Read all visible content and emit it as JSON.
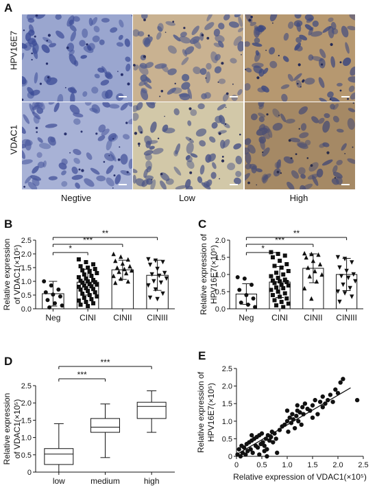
{
  "panel_a": {
    "label": "A",
    "row_labels": [
      "HPV16E7",
      "VDAC1"
    ],
    "col_labels": [
      "Negtive",
      "Low",
      "High"
    ],
    "tiles": [
      {
        "bg": "#9aa6cf",
        "cell": "#3d4d97",
        "dot": "#262f6c"
      },
      {
        "bg": "#c9b291",
        "cell": "#4f5a8c",
        "dot": "#2b2f58"
      },
      {
        "bg": "#b69870",
        "cell": "#3c4880",
        "dot": "#242a56"
      },
      {
        "bg": "#a8b2d6",
        "cell": "#48569c",
        "dot": "#2a336f"
      },
      {
        "bg": "#d2c8a8",
        "cell": "#4b5587",
        "dot": "#2c3059"
      },
      {
        "bg": "#a58965",
        "cell": "#4a4e74",
        "dot": "#2b2d49"
      }
    ]
  },
  "chart_data": [
    {
      "panel": "B",
      "type": "bar",
      "categories": [
        "Neg",
        "CINI",
        "CINII",
        "CINIII"
      ],
      "values": [
        0.55,
        0.97,
        1.42,
        1.22
      ],
      "errors": [
        0.45,
        0.47,
        0.35,
        0.55
      ],
      "markers": [
        "circle",
        "square",
        "triangle",
        "triangle-down"
      ],
      "points": [
        [
          1.0,
          0.85,
          0.7,
          0.6,
          0.52,
          0.45,
          0.32,
          0.2,
          0.12,
          0.05
        ],
        [
          1.8,
          1.7,
          1.62,
          1.55,
          1.5,
          1.45,
          1.4,
          1.35,
          1.3,
          1.25,
          1.2,
          1.15,
          1.1,
          1.05,
          1.02,
          1.0,
          0.97,
          0.95,
          0.9,
          0.88,
          0.85,
          0.82,
          0.8,
          0.75,
          0.72,
          0.7,
          0.65,
          0.6,
          0.55,
          0.5,
          0.45,
          0.4,
          0.35,
          0.3,
          0.25,
          0.2,
          0.15,
          0.1
        ],
        [
          2.0,
          1.9,
          1.8,
          1.75,
          1.65,
          1.55,
          1.5,
          1.45,
          1.4,
          1.35,
          1.3,
          1.2,
          1.1,
          1.0,
          0.95
        ],
        [
          1.8,
          1.75,
          1.7,
          1.6,
          1.45,
          1.3,
          1.25,
          1.2,
          1.1,
          1.0,
          0.95,
          0.85,
          0.7,
          0.55,
          0.4,
          0.35
        ]
      ],
      "ylabel_lines": [
        "Relative expression",
        "of VDAC1(×10⁵)"
      ],
      "ylim": [
        0,
        2.5
      ],
      "yticks": [
        "0.0",
        "0.5",
        "1.0",
        "1.5",
        "2.0",
        "2.5"
      ],
      "sig": [
        {
          "from": 0,
          "to": 1,
          "text": "*"
        },
        {
          "from": 0,
          "to": 2,
          "text": "***"
        },
        {
          "from": 0,
          "to": 3,
          "text": "**"
        }
      ]
    },
    {
      "panel": "C",
      "type": "bar",
      "categories": [
        "Neg",
        "CINI",
        "CINII",
        "CINIII"
      ],
      "values": [
        0.43,
        0.78,
        1.18,
        1.0
      ],
      "errors": [
        0.3,
        0.45,
        0.42,
        0.47
      ],
      "markers": [
        "circle",
        "square",
        "triangle",
        "triangle-down"
      ],
      "points": [
        [
          0.92,
          0.88,
          0.7,
          0.55,
          0.4,
          0.3,
          0.18,
          0.12,
          0.05
        ],
        [
          1.65,
          1.6,
          1.55,
          1.5,
          1.4,
          1.3,
          1.25,
          1.2,
          1.1,
          1.05,
          1.0,
          0.95,
          0.9,
          0.85,
          0.82,
          0.8,
          0.78,
          0.75,
          0.7,
          0.68,
          0.62,
          0.6,
          0.55,
          0.5,
          0.45,
          0.4,
          0.35,
          0.3,
          0.25,
          0.2,
          0.15,
          0.1,
          0.05
        ],
        [
          1.62,
          1.6,
          1.58,
          1.5,
          1.4,
          1.3,
          1.2,
          1.1,
          1.0,
          0.95,
          0.8,
          0.6,
          0.3
        ],
        [
          1.5,
          1.45,
          1.35,
          1.2,
          1.1,
          1.0,
          0.95,
          0.9,
          0.8,
          0.7,
          0.6,
          0.5,
          0.45,
          0.35,
          0.2
        ]
      ],
      "ylabel_lines": [
        "Relative expression of",
        "HPV16E7(×10⁵)"
      ],
      "ylim": [
        0,
        2.0
      ],
      "yticks": [
        "0.0",
        "0.5",
        "1.0",
        "1.5",
        "2.0"
      ],
      "sig": [
        {
          "from": 0,
          "to": 1,
          "text": "*"
        },
        {
          "from": 0,
          "to": 2,
          "text": "***"
        },
        {
          "from": 0,
          "to": 3,
          "text": "**"
        }
      ]
    },
    {
      "panel": "D",
      "type": "box",
      "categories": [
        "low",
        "medium",
        "high"
      ],
      "boxes": [
        {
          "min": 0.0,
          "q1": 0.22,
          "median": 0.52,
          "q3": 0.68,
          "max": 1.4
        },
        {
          "min": 0.42,
          "q1": 1.15,
          "median": 1.3,
          "q3": 1.55,
          "max": 1.97
        },
        {
          "min": 1.15,
          "q1": 1.55,
          "median": 1.9,
          "q3": 2.02,
          "max": 2.35
        }
      ],
      "ylabel_lines": [
        "Relative expression",
        "of VDAC1(×10⁵)"
      ],
      "ylim": [
        0,
        2.5
      ],
      "yticks": [
        "0",
        "0.5",
        "1.0",
        "1.5",
        "2.0",
        "2.5"
      ],
      "sig": [
        {
          "from": 0,
          "to": 1,
          "text": "***"
        },
        {
          "from": 0,
          "to": 2,
          "text": "***"
        }
      ]
    },
    {
      "panel": "E",
      "type": "scatter",
      "xlabel": "Relative expression of VDAC1(×10⁵)",
      "ylabel_lines": [
        "Relative expression of",
        "HPV16E7(×10⁵)"
      ],
      "xlim": [
        0,
        2.5
      ],
      "ylim": [
        0,
        2.5
      ],
      "xticks": [
        "0",
        "0.5",
        "1.0",
        "1.5",
        "2.0",
        "2.5"
      ],
      "yticks": [
        "0",
        "0.5",
        "1.0",
        "1.5",
        "2.0",
        "2.5"
      ],
      "fit": {
        "x1": 0.0,
        "y1": 0.05,
        "x2": 2.25,
        "y2": 1.95
      },
      "x": [
        0.02,
        0.05,
        0.08,
        0.1,
        0.12,
        0.15,
        0.18,
        0.2,
        0.22,
        0.25,
        0.28,
        0.3,
        0.32,
        0.35,
        0.38,
        0.4,
        0.42,
        0.45,
        0.48,
        0.5,
        0.52,
        0.55,
        0.58,
        0.6,
        0.62,
        0.65,
        0.68,
        0.7,
        0.72,
        0.75,
        0.78,
        0.8,
        0.85,
        0.9,
        0.95,
        1.0,
        1.02,
        1.05,
        1.08,
        1.1,
        1.12,
        1.15,
        1.18,
        1.2,
        1.22,
        1.25,
        1.28,
        1.3,
        1.32,
        1.35,
        1.4,
        1.45,
        1.5,
        1.55,
        1.6,
        1.65,
        1.7,
        1.75,
        1.8,
        1.85,
        1.9,
        1.95,
        2.0,
        2.05,
        2.1,
        2.38,
        0.55,
        0.6,
        0.65,
        1.0,
        1.2,
        1.5,
        1.7,
        0.3,
        0.45
      ],
      "y": [
        0.05,
        0.2,
        0.0,
        0.3,
        0.1,
        0.25,
        0.05,
        0.35,
        0.15,
        0.4,
        0.2,
        0.45,
        0.1,
        0.5,
        0.3,
        0.55,
        0.25,
        0.6,
        0.35,
        0.65,
        0.4,
        0.3,
        0.5,
        0.2,
        0.6,
        0.45,
        0.55,
        0.7,
        0.4,
        0.65,
        0.5,
        0.1,
        0.75,
        0.85,
        0.9,
        1.0,
        0.7,
        1.1,
        0.95,
        1.2,
        1.05,
        0.8,
        1.15,
        1.3,
        1.0,
        1.25,
        0.9,
        1.4,
        1.2,
        1.5,
        1.35,
        1.3,
        1.45,
        1.6,
        1.2,
        1.55,
        1.7,
        1.5,
        1.6,
        1.75,
        1.55,
        1.9,
        1.8,
        2.1,
        2.2,
        1.6,
        0.15,
        0.0,
        0.45,
        1.3,
        1.45,
        1.1,
        1.4,
        0.6,
        0.05
      ]
    }
  ]
}
